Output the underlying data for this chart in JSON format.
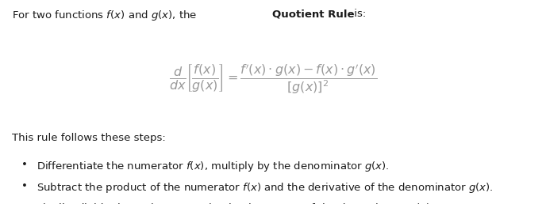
{
  "bg_color": "#ffffff",
  "text_color": "#1a1a1a",
  "formula_color": "#999999",
  "fig_width": 6.88,
  "fig_height": 2.58,
  "dpi": 100,
  "steps_header": "This rule follows these steps:",
  "bullet1": "Differentiate the numerator $f(x)$, multiply by the denominator $g(x)$.",
  "bullet2": "Subtract the product of the numerator $f(x)$ and the derivative of the denominator $g(x)$.",
  "bullet3": "Finally, divide the entire expression by the square of the denominator $g(x)$.",
  "font_size_text": 9.5,
  "font_size_formula": 11.5
}
